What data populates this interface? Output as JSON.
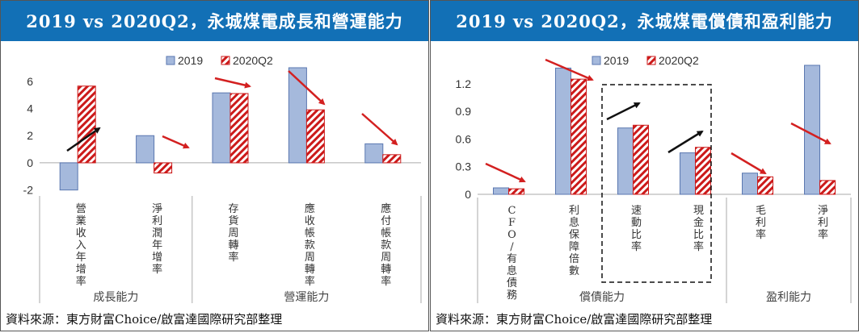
{
  "source_note": "資料來源：東方財富Choice/啟富達國際研究部整理",
  "colors": {
    "s2019_fill": "#a5b9dc",
    "s2019_stroke": "#5a77b0",
    "s2020_stripe": "#cc1a1a",
    "arrow_red": "#d32020",
    "arrow_black": "#111111",
    "title_bg": "#1270b6"
  },
  "chart_data": [
    {
      "type": "bar",
      "title": "2019 vs 2020Q2，永城煤電成長和營運能力",
      "categories": [
        "營業收入年增率",
        "淨利潤年增率",
        "存貨周轉率",
        "應收帳款周轉率",
        "應付帳款周轉率"
      ],
      "groups": [
        {
          "label": "成長能力",
          "span": [
            0,
            2
          ]
        },
        {
          "label": "營運能力",
          "span": [
            2,
            5
          ]
        }
      ],
      "series": [
        {
          "name": "2019",
          "values": [
            -2.0,
            2.0,
            5.15,
            7.0,
            1.4
          ]
        },
        {
          "name": "2020Q2",
          "values": [
            5.65,
            -0.75,
            5.1,
            3.9,
            0.6
          ]
        }
      ],
      "ylim": [
        -2.2,
        7.0
      ],
      "yticks": [
        -2,
        0,
        2,
        4,
        6
      ],
      "ytick_labels": [
        "-2",
        "0",
        "2",
        "4",
        "6"
      ],
      "legend": "top-center"
    },
    {
      "type": "bar",
      "title": "2019 vs 2020Q2，永城煤電償債和盈利能力",
      "categories": [
        "CFO/有息債務",
        "利息保障倍數",
        "速動比率",
        "現金比率",
        "毛利率",
        "淨利率"
      ],
      "groups": [
        {
          "label": "償債能力",
          "span": [
            0,
            4
          ]
        },
        {
          "label": "盈利能力",
          "span": [
            4,
            6
          ]
        }
      ],
      "series": [
        {
          "name": "2019",
          "values": [
            0.07,
            1.37,
            0.72,
            0.45,
            0.23,
            1.4
          ]
        },
        {
          "name": "2020Q2",
          "values": [
            0.06,
            1.25,
            0.75,
            0.51,
            0.19,
            0.15
          ]
        }
      ],
      "ylim": [
        0,
        1.4
      ],
      "yticks": [
        0,
        0.3,
        0.6,
        0.9,
        1.2
      ],
      "ytick_labels": [
        "0",
        "0.3",
        "0.6",
        "0.9",
        "1.2"
      ],
      "legend": "top-center"
    }
  ]
}
